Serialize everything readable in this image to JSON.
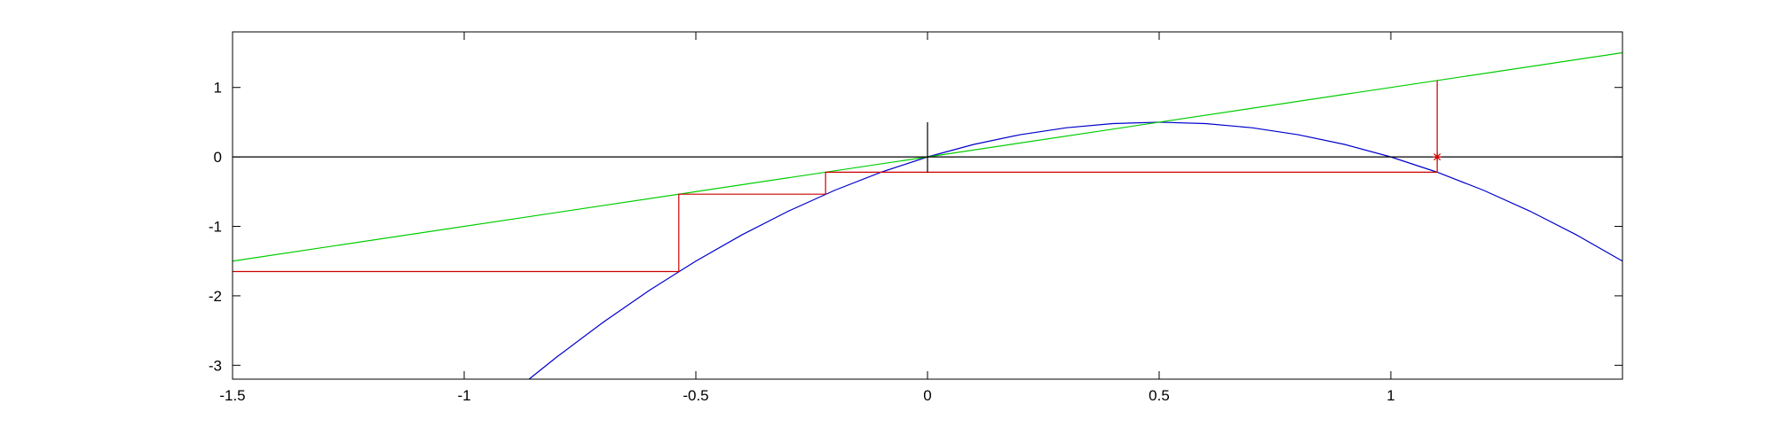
{
  "chart_data": {
    "type": "line",
    "title": "",
    "xlabel": "",
    "ylabel": "",
    "xlim": [
      -1.5,
      1.5
    ],
    "ylim": [
      -3.2,
      1.8
    ],
    "grid": false,
    "x_ticks": [
      {
        "value": -1.5,
        "label": "-1.5"
      },
      {
        "value": -1,
        "label": "-1"
      },
      {
        "value": -0.5,
        "label": "-0.5"
      },
      {
        "value": 0,
        "label": "0"
      },
      {
        "value": 0.5,
        "label": "0.5"
      },
      {
        "value": 1,
        "label": "1"
      }
    ],
    "y_ticks": [
      {
        "value": 1,
        "label": "1"
      },
      {
        "value": 0,
        "label": "0"
      },
      {
        "value": -1,
        "label": "-1"
      },
      {
        "value": -2,
        "label": "-2"
      },
      {
        "value": -3,
        "label": "-3"
      }
    ],
    "series": [
      {
        "function": "y = 2x - 2x^2",
        "color": "#0000cc",
        "x": [
          -0.86,
          -0.8,
          -0.7,
          -0.6,
          -0.5,
          -0.4,
          -0.3,
          -0.2,
          -0.1,
          0,
          0.1,
          0.2,
          0.3,
          0.4,
          0.5,
          0.6,
          0.7,
          0.8,
          0.9,
          1,
          1.1,
          1.2,
          1.3,
          1.4,
          1.5
        ],
        "y": [
          -3.2,
          -2.88,
          -2.38,
          -1.92,
          -1.5,
          -1.12,
          -0.78,
          -0.48,
          -0.22,
          0,
          0.18,
          0.32,
          0.42,
          0.48,
          0.5,
          0.48,
          0.42,
          0.32,
          0.18,
          0,
          -0.22,
          -0.48,
          -0.78,
          -1.12,
          -1.5
        ]
      },
      {
        "function": "y = x",
        "color": "#00cc00",
        "x": [
          -1.5,
          1.5
        ],
        "y": [
          -1.5,
          1.5
        ]
      },
      {
        "function": "cobweb",
        "color": "#cc0000",
        "x": [
          1.1,
          1.1,
          -0.22,
          -0.22,
          -0.5368,
          -0.5368,
          -1.5
        ],
        "y": [
          1.1,
          -0.22,
          -0.22,
          -0.5368,
          -0.5368,
          -1.6499,
          -1.6499
        ]
      },
      {
        "function": "vertical line x = 0",
        "color": "#000000",
        "x": [
          0,
          0
        ],
        "y": [
          -0.22,
          0.5
        ]
      },
      {
        "function": "horizontal line y = 0",
        "color": "#000000",
        "x": [
          -1.5,
          1.5
        ],
        "y": [
          0,
          0
        ]
      }
    ],
    "markers": [
      {
        "shape": "star",
        "color": "#cc0000",
        "x": 1.1,
        "y": 0
      }
    ]
  }
}
